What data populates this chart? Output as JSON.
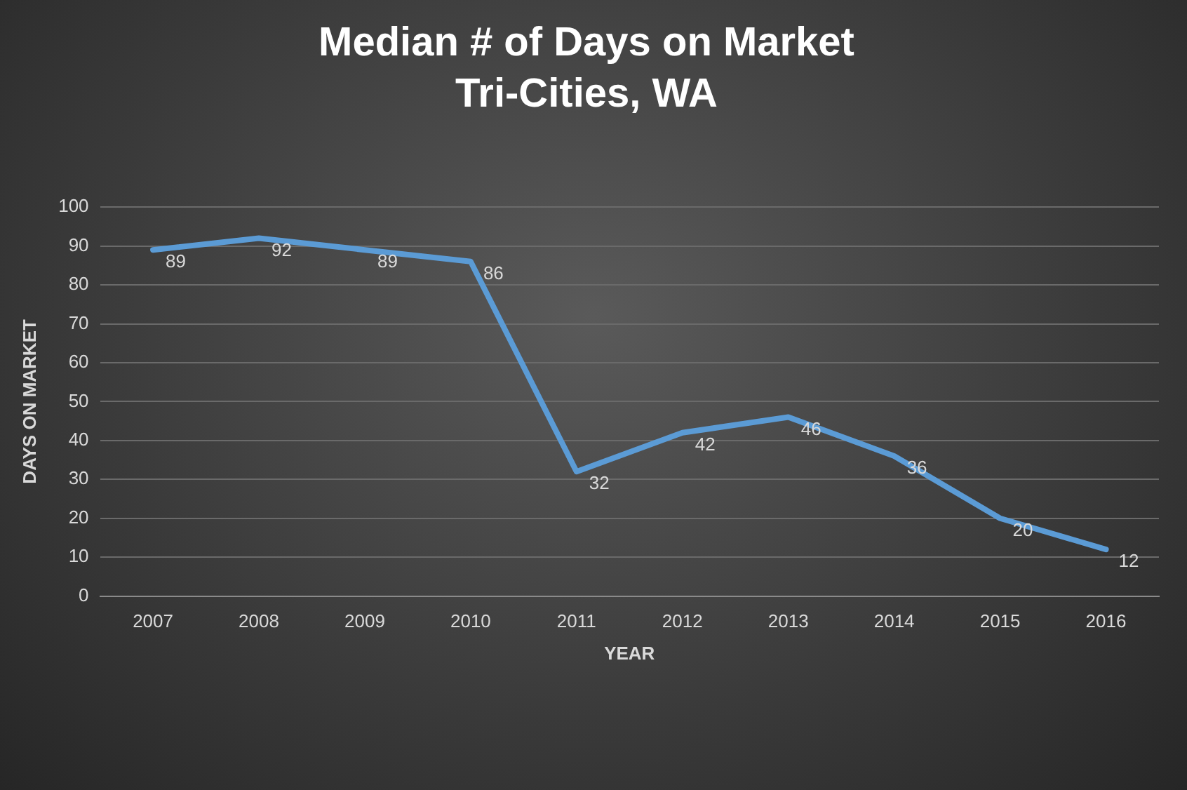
{
  "chart_data": {
    "type": "line",
    "title": "Median # of Days on Market",
    "subtitle": "Tri-Cities, WA",
    "xlabel": "YEAR",
    "ylabel": "DAYS ON MARKET",
    "categories": [
      "2007",
      "2008",
      "2009",
      "2010",
      "2011",
      "2012",
      "2013",
      "2014",
      "2015",
      "2016"
    ],
    "series": [
      {
        "color": "#5b9bd5",
        "values": [
          89,
          92,
          89,
          86,
          32,
          42,
          46,
          36,
          20,
          12
        ]
      }
    ],
    "ylim": [
      0,
      100
    ],
    "yticks": [
      0,
      10,
      20,
      30,
      40,
      50,
      60,
      70,
      80,
      90,
      100
    ],
    "grid": "y",
    "legend": false,
    "marker": "none",
    "line_style": "solid",
    "data_labels": true
  }
}
